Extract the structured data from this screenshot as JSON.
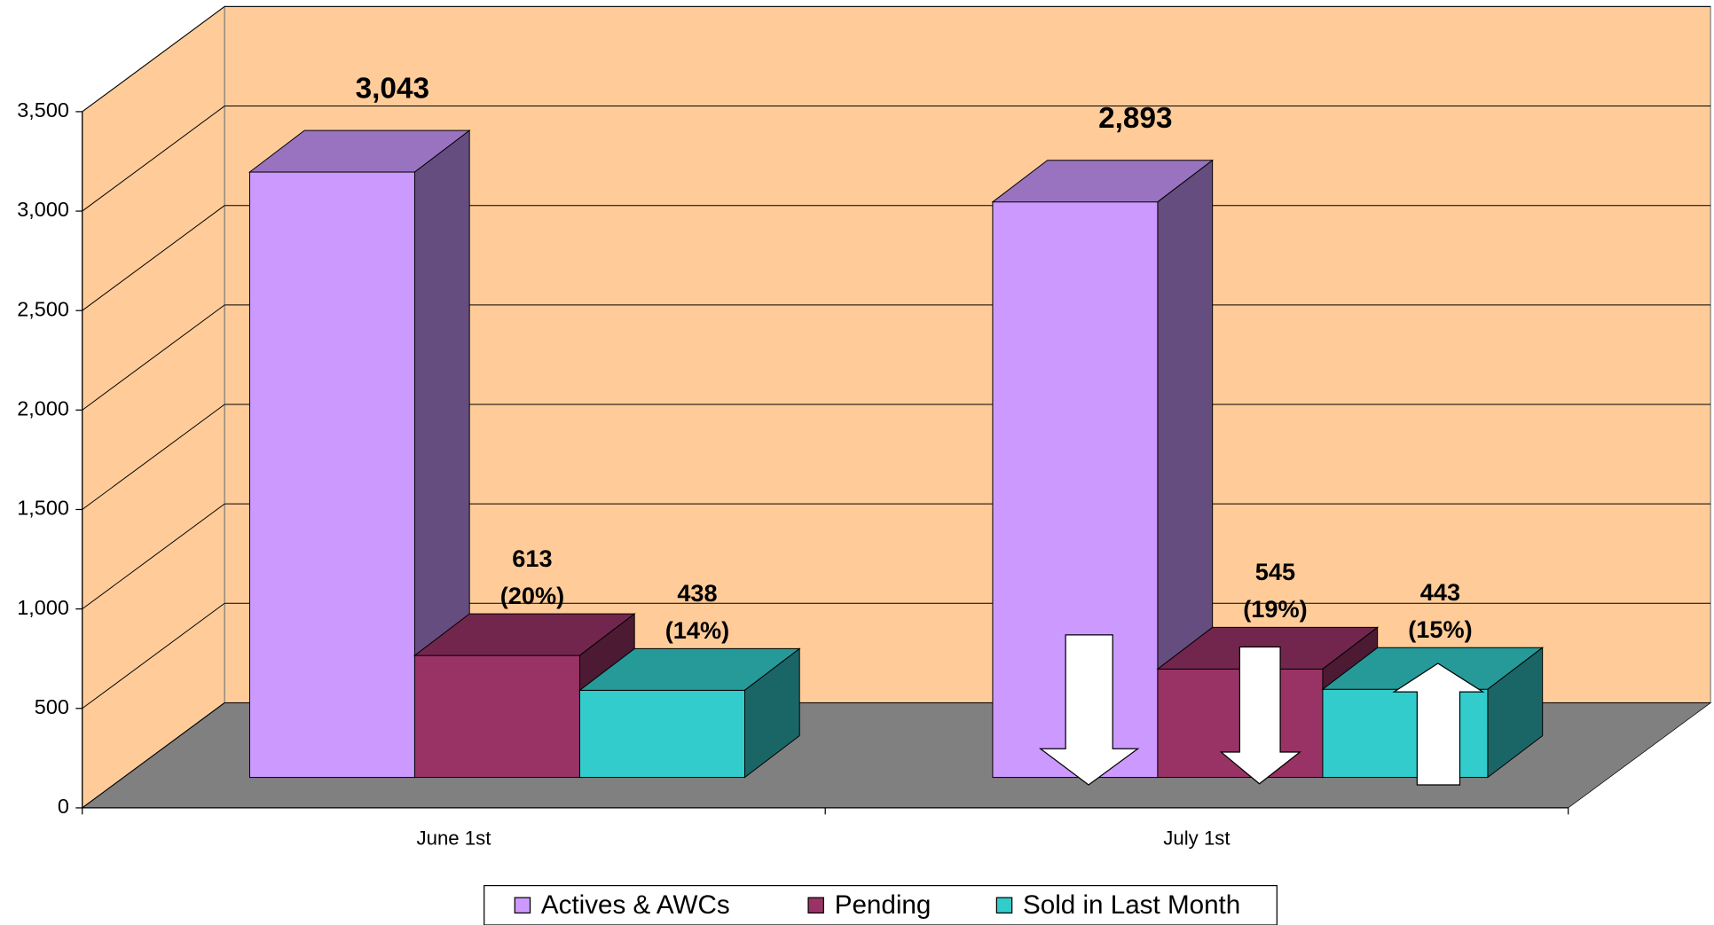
{
  "chart_data": {
    "type": "bar3d",
    "categories": [
      "June 1st",
      "July 1st"
    ],
    "series": [
      {
        "name": "Actives & AWCs",
        "color": "#cc99ff",
        "values": [
          3043,
          2893
        ],
        "value_labels": [
          [
            "3,043"
          ],
          [
            "2,893"
          ]
        ]
      },
      {
        "name": "Pending",
        "color": "#993366",
        "values": [
          613,
          545
        ],
        "value_labels": [
          [
            "613",
            "(20%)"
          ],
          [
            "545",
            "(19%)"
          ]
        ]
      },
      {
        "name": "Sold in Last Month",
        "color": "#33cccc",
        "values": [
          438,
          443
        ],
        "value_labels": [
          [
            "438",
            "(14%)"
          ],
          [
            "443",
            "(15%)"
          ]
        ]
      }
    ],
    "ylim": [
      0,
      3500
    ],
    "yticks": [
      0,
      500,
      {
        "value": 1000,
        "label": "1,000"
      },
      {
        "value": 1500,
        "label": "1,500"
      },
      {
        "value": 2000,
        "label": "2,000"
      },
      {
        "value": 2500,
        "label": "2,500"
      },
      {
        "value": 3000,
        "label": "3,000"
      },
      {
        "value": 3500,
        "label": "3,500"
      }
    ],
    "grid": true,
    "legend": "bottom",
    "wall_color": "#ffcc99",
    "floor_color": "#808080"
  }
}
